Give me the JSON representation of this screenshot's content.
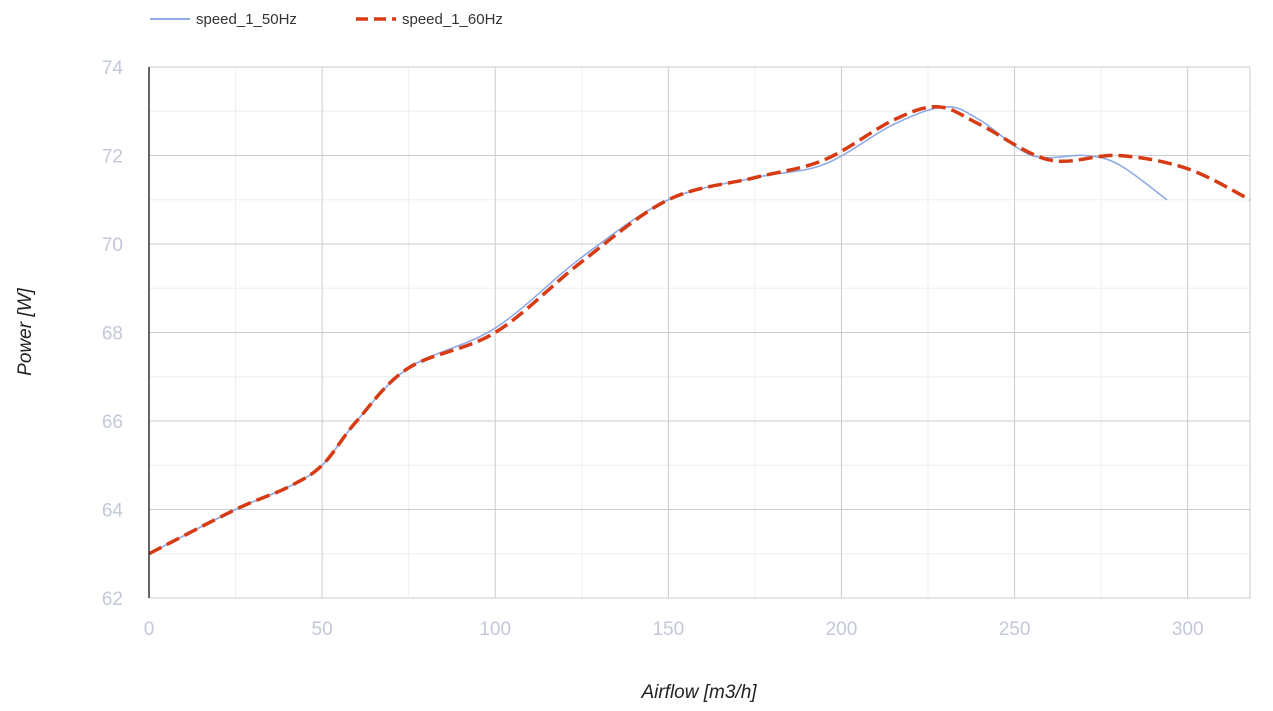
{
  "chart_data": {
    "type": "line",
    "title": "",
    "xlabel": "Airflow [m3/h]",
    "ylabel": "Power [W]",
    "xlim": [
      0,
      318
    ],
    "ylim": [
      62,
      74
    ],
    "x_ticks": [
      0,
      50,
      100,
      150,
      200,
      250,
      300
    ],
    "y_ticks": [
      62,
      64,
      66,
      68,
      70,
      72,
      74
    ],
    "x_minor_step": 25,
    "y_minor_step": 1,
    "grid": true,
    "legend_position": "top-left",
    "series": [
      {
        "name": "speed_1_50Hz",
        "color": "#8faae6",
        "style": "solid",
        "x": [
          0,
          25,
          40,
          50,
          60,
          75,
          100,
          125,
          150,
          175,
          195,
          215,
          230,
          240,
          255,
          270,
          280,
          294
        ],
        "y": [
          63,
          64,
          64.5,
          65,
          66,
          67.2,
          68.1,
          69.7,
          71.0,
          71.5,
          71.8,
          72.7,
          73.1,
          72.8,
          72.0,
          72.0,
          71.8,
          71.0
        ]
      },
      {
        "name": "speed_1_60Hz",
        "color": "#d63b14",
        "style": "dashed",
        "x": [
          0,
          25,
          40,
          50,
          60,
          75,
          100,
          125,
          150,
          175,
          195,
          215,
          228,
          240,
          260,
          280,
          300,
          318
        ],
        "y": [
          63,
          64,
          64.5,
          65,
          66,
          67.2,
          68.0,
          69.6,
          71.0,
          71.5,
          71.9,
          72.8,
          73.1,
          72.7,
          71.9,
          72.0,
          71.7,
          71.0
        ]
      }
    ]
  }
}
